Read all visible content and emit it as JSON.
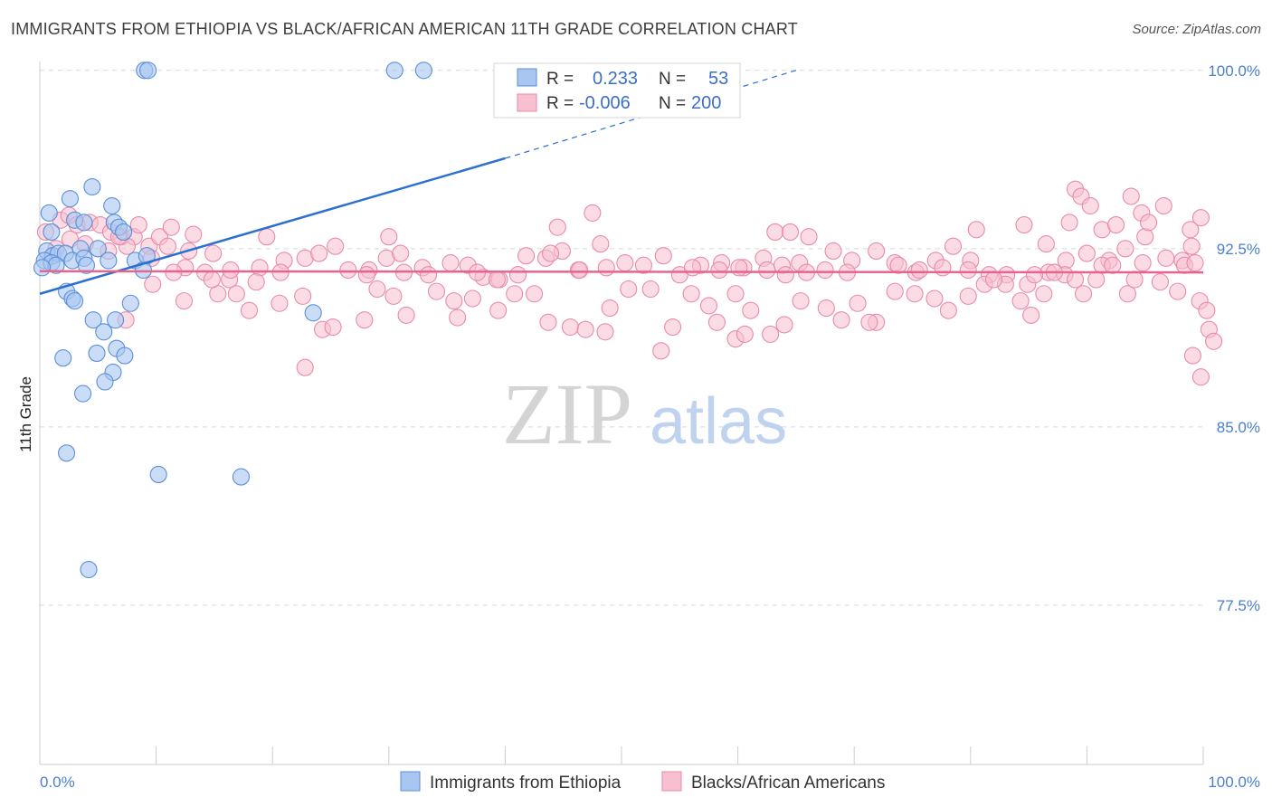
{
  "title": "IMMIGRANTS FROM ETHIOPIA VS BLACK/AFRICAN AMERICAN 11TH GRADE CORRELATION CHART",
  "source": "Source: ZipAtlas.com",
  "watermark": {
    "zip": "ZIP",
    "atlas": "atlas"
  },
  "legend": {
    "rows": [
      {
        "r_label": "R =",
        "r_value": "0.233",
        "n_label": "N =",
        "n_value": "53"
      },
      {
        "r_label": "R =",
        "r_value": "-0.006",
        "n_label": "N =",
        "n_value": "200"
      }
    ]
  },
  "bottom_legend": [
    "Immigrants from Ethiopia",
    "Blacks/African Americans"
  ],
  "colors": {
    "blue_fill": "#a9c6f0",
    "blue_stroke": "#5b8fd8",
    "blue_line": "#2b6fcf",
    "pink_fill": "#f7bfd0",
    "pink_stroke": "#e98aaa",
    "pink_line": "#e8648f",
    "grid": "#d8d8d8",
    "tick_text": "#4a7fd0"
  },
  "chart_data": {
    "type": "scatter",
    "title": "IMMIGRANTS FROM ETHIOPIA VS BLACK/AFRICAN AMERICAN 11TH GRADE CORRELATION CHART",
    "xlabel": "",
    "ylabel": "11th Grade",
    "xlim": [
      0,
      100
    ],
    "ylim": [
      70.8,
      100.6
    ],
    "x_tick_labels": [
      "0.0%",
      "100.0%"
    ],
    "y_ticks": [
      77.5,
      85.0,
      92.5,
      100.0
    ],
    "y_tick_labels": [
      "77.5%",
      "85.0%",
      "92.5%",
      "100.0%"
    ],
    "grid": true,
    "legend_placement": "top-center",
    "series": [
      {
        "name": "Immigrants from Ethiopia",
        "color": "#a9c6f0",
        "trend": {
          "x0": 0,
          "y0": 90.6,
          "x1": 40,
          "y1": 96.3,
          "dashed_to_x": 65,
          "dashed_to_y": 100.0
        },
        "points": [
          [
            9.0,
            100.0
          ],
          [
            9.3,
            100.0
          ],
          [
            30.5,
            100.0
          ],
          [
            33.0,
            100.0
          ],
          [
            0.8,
            94.0
          ],
          [
            2.6,
            94.6
          ],
          [
            4.5,
            95.1
          ],
          [
            6.2,
            94.3
          ],
          [
            1.0,
            93.2
          ],
          [
            3.0,
            93.7
          ],
          [
            3.8,
            93.6
          ],
          [
            6.4,
            93.6
          ],
          [
            6.8,
            93.4
          ],
          [
            7.2,
            93.2
          ],
          [
            0.6,
            92.4
          ],
          [
            1.1,
            92.2
          ],
          [
            1.6,
            92.3
          ],
          [
            2.2,
            92.3
          ],
          [
            3.5,
            92.5
          ],
          [
            5.0,
            92.5
          ],
          [
            0.4,
            92.0
          ],
          [
            1.0,
            91.9
          ],
          [
            1.4,
            91.8
          ],
          [
            2.8,
            92.0
          ],
          [
            3.8,
            92.1
          ],
          [
            4.0,
            91.8
          ],
          [
            5.9,
            92.0
          ],
          [
            8.2,
            92.0
          ],
          [
            8.9,
            91.6
          ],
          [
            9.2,
            92.2
          ],
          [
            0.2,
            91.7
          ],
          [
            2.3,
            90.7
          ],
          [
            2.8,
            90.4
          ],
          [
            3.0,
            90.3
          ],
          [
            7.8,
            90.2
          ],
          [
            23.5,
            89.8
          ],
          [
            4.6,
            89.5
          ],
          [
            6.5,
            89.5
          ],
          [
            5.5,
            89.0
          ],
          [
            4.9,
            88.1
          ],
          [
            6.6,
            88.3
          ],
          [
            7.3,
            88.0
          ],
          [
            2.0,
            87.9
          ],
          [
            6.3,
            87.3
          ],
          [
            5.6,
            86.9
          ],
          [
            3.7,
            86.4
          ],
          [
            2.3,
            83.9
          ],
          [
            10.2,
            83.0
          ],
          [
            17.3,
            82.9
          ],
          [
            4.2,
            79.0
          ]
        ]
      },
      {
        "name": "Blacks/African Americans",
        "color": "#f7bfd0",
        "trend": {
          "x0": 0,
          "y0": 91.55,
          "x1": 100,
          "y1": 91.5
        },
        "points": [
          [
            0.5,
            93.2
          ],
          [
            1.8,
            93.7
          ],
          [
            2.5,
            93.9
          ],
          [
            3.2,
            93.5
          ],
          [
            4.3,
            93.6
          ],
          [
            5.2,
            93.5
          ],
          [
            6.1,
            93.2
          ],
          [
            7.0,
            93.0
          ],
          [
            8.1,
            93.0
          ],
          [
            9.4,
            92.6
          ],
          [
            10.3,
            93.0
          ],
          [
            11.3,
            93.4
          ],
          [
            12.8,
            92.4
          ],
          [
            14.9,
            92.3
          ],
          [
            1.4,
            92.5
          ],
          [
            2.6,
            92.9
          ],
          [
            3.9,
            92.7
          ],
          [
            5.9,
            92.4
          ],
          [
            7.5,
            92.6
          ],
          [
            9.6,
            92.1
          ],
          [
            11.0,
            92.6
          ],
          [
            12.5,
            91.7
          ],
          [
            14.2,
            91.5
          ],
          [
            16.3,
            91.2
          ],
          [
            18.9,
            91.7
          ],
          [
            21.0,
            92.0
          ],
          [
            22.8,
            92.1
          ],
          [
            25.4,
            92.6
          ],
          [
            26.5,
            91.6
          ],
          [
            28.3,
            91.6
          ],
          [
            29.8,
            92.1
          ],
          [
            31.0,
            92.3
          ],
          [
            32.9,
            91.7
          ],
          [
            35.3,
            91.9
          ],
          [
            36.8,
            91.8
          ],
          [
            38.1,
            91.3
          ],
          [
            39.5,
            91.2
          ],
          [
            41.8,
            92.2
          ],
          [
            43.5,
            92.1
          ],
          [
            44.9,
            92.4
          ],
          [
            46.3,
            91.6
          ],
          [
            48.2,
            92.7
          ],
          [
            50.3,
            91.9
          ],
          [
            51.9,
            91.8
          ],
          [
            53.6,
            92.2
          ],
          [
            55.0,
            91.4
          ],
          [
            56.8,
            91.8
          ],
          [
            58.6,
            91.9
          ],
          [
            60.5,
            91.7
          ],
          [
            62.2,
            92.1
          ],
          [
            63.8,
            91.8
          ],
          [
            65.3,
            91.9
          ],
          [
            66.1,
            93.0
          ],
          [
            68.2,
            92.4
          ],
          [
            69.8,
            92.0
          ],
          [
            71.9,
            92.4
          ],
          [
            73.5,
            91.9
          ],
          [
            75.3,
            91.5
          ],
          [
            77.0,
            92.0
          ],
          [
            78.5,
            92.6
          ],
          [
            80.0,
            92.0
          ],
          [
            81.6,
            91.4
          ],
          [
            83.1,
            91.4
          ],
          [
            84.9,
            91.0
          ],
          [
            86.7,
            91.5
          ],
          [
            88.2,
            92.0
          ],
          [
            90.0,
            92.3
          ],
          [
            91.9,
            92.0
          ],
          [
            93.3,
            92.5
          ],
          [
            95.0,
            93.0
          ],
          [
            96.8,
            92.1
          ],
          [
            98.2,
            92.0
          ],
          [
            99.0,
            92.6
          ],
          [
            6.8,
            93.0
          ],
          [
            8.5,
            93.5
          ],
          [
            13.2,
            93.1
          ],
          [
            19.5,
            93.0
          ],
          [
            24.0,
            92.3
          ],
          [
            30.0,
            93.0
          ],
          [
            44.5,
            93.4
          ],
          [
            47.5,
            94.0
          ],
          [
            63.2,
            93.2
          ],
          [
            64.5,
            93.2
          ],
          [
            80.5,
            93.3
          ],
          [
            84.6,
            93.5
          ],
          [
            86.5,
            92.7
          ],
          [
            88.5,
            93.6
          ],
          [
            89.0,
            95.0
          ],
          [
            89.5,
            94.7
          ],
          [
            90.3,
            94.3
          ],
          [
            91.3,
            93.3
          ],
          [
            92.5,
            93.5
          ],
          [
            93.8,
            94.7
          ],
          [
            94.7,
            94.0
          ],
          [
            95.3,
            93.6
          ],
          [
            96.6,
            94.3
          ],
          [
            98.9,
            93.3
          ],
          [
            99.8,
            93.8
          ],
          [
            9.7,
            91.0
          ],
          [
            12.4,
            90.3
          ],
          [
            15.3,
            90.6
          ],
          [
            16.9,
            90.6
          ],
          [
            18.0,
            89.9
          ],
          [
            20.6,
            90.2
          ],
          [
            22.6,
            90.5
          ],
          [
            24.3,
            89.1
          ],
          [
            25.2,
            89.2
          ],
          [
            27.9,
            89.5
          ],
          [
            29.0,
            90.8
          ],
          [
            30.4,
            90.5
          ],
          [
            31.5,
            89.7
          ],
          [
            34.1,
            90.7
          ],
          [
            35.6,
            90.3
          ],
          [
            37.2,
            90.4
          ],
          [
            39.4,
            89.9
          ],
          [
            40.8,
            90.6
          ],
          [
            42.5,
            90.6
          ],
          [
            43.7,
            89.4
          ],
          [
            45.6,
            89.2
          ],
          [
            46.9,
            89.1
          ],
          [
            49.0,
            90.0
          ],
          [
            50.6,
            90.8
          ],
          [
            52.5,
            90.8
          ],
          [
            54.4,
            89.2
          ],
          [
            56.0,
            90.6
          ],
          [
            57.5,
            90.1
          ],
          [
            58.2,
            89.4
          ],
          [
            59.8,
            90.6
          ],
          [
            61.1,
            89.9
          ],
          [
            62.8,
            88.9
          ],
          [
            64.0,
            89.3
          ],
          [
            65.4,
            90.3
          ],
          [
            67.6,
            90.0
          ],
          [
            68.9,
            89.5
          ],
          [
            70.3,
            90.2
          ],
          [
            71.9,
            89.4
          ],
          [
            73.5,
            90.7
          ],
          [
            75.2,
            90.6
          ],
          [
            76.9,
            90.4
          ],
          [
            78.1,
            89.9
          ],
          [
            79.8,
            90.5
          ],
          [
            81.2,
            91.0
          ],
          [
            83.0,
            91.0
          ],
          [
            84.3,
            90.3
          ],
          [
            85.2,
            89.7
          ],
          [
            86.3,
            90.6
          ],
          [
            88.1,
            91.4
          ],
          [
            89.7,
            90.6
          ],
          [
            91.3,
            91.8
          ],
          [
            93.5,
            90.6
          ],
          [
            94.8,
            91.9
          ],
          [
            96.3,
            91.1
          ],
          [
            97.8,
            90.7
          ],
          [
            98.4,
            91.8
          ],
          [
            99.3,
            91.9
          ],
          [
            99.7,
            90.3
          ],
          [
            100.3,
            89.9
          ],
          [
            100.5,
            89.1
          ],
          [
            100.9,
            88.6
          ],
          [
            99.1,
            88.0
          ],
          [
            99.8,
            87.1
          ],
          [
            22.8,
            87.5
          ],
          [
            7.4,
            89.5
          ],
          [
            53.4,
            88.2
          ],
          [
            35.9,
            89.6
          ],
          [
            59.8,
            88.7
          ],
          [
            48.6,
            89.0
          ],
          [
            60.6,
            88.9
          ],
          [
            71.3,
            89.4
          ],
          [
            73.8,
            91.8
          ],
          [
            75.6,
            91.6
          ],
          [
            65.9,
            91.5
          ],
          [
            67.5,
            91.6
          ],
          [
            69.4,
            91.5
          ],
          [
            43.9,
            92.3
          ],
          [
            46.4,
            91.6
          ],
          [
            48.7,
            91.7
          ],
          [
            41.1,
            91.4
          ],
          [
            37.6,
            91.5
          ],
          [
            39.3,
            91.2
          ],
          [
            33.4,
            91.4
          ],
          [
            31.3,
            91.5
          ],
          [
            28.1,
            91.4
          ],
          [
            20.7,
            91.5
          ],
          [
            18.6,
            91.1
          ],
          [
            16.4,
            91.6
          ],
          [
            14.8,
            91.2
          ],
          [
            11.5,
            91.5
          ],
          [
            56.1,
            91.7
          ],
          [
            58.4,
            91.6
          ],
          [
            60.1,
            91.7
          ],
          [
            62.5,
            91.6
          ],
          [
            64.1,
            91.4
          ],
          [
            77.6,
            91.7
          ],
          [
            79.8,
            91.6
          ],
          [
            82.0,
            91.2
          ],
          [
            85.5,
            91.4
          ],
          [
            87.2,
            91.5
          ],
          [
            89.0,
            91.2
          ],
          [
            90.8,
            91.2
          ],
          [
            92.2,
            91.8
          ],
          [
            94.1,
            91.2
          ]
        ]
      }
    ]
  }
}
